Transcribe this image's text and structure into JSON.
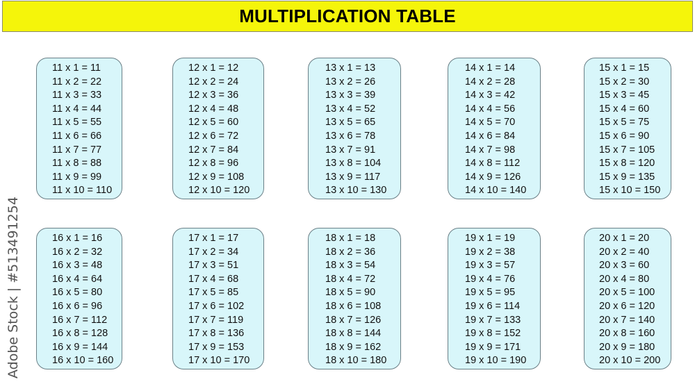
{
  "title": "MULTIPLICATION TABLE",
  "watermark": "Adobe Stock | #513491254",
  "colors": {
    "banner": "#f5f50a",
    "card": "#d8f6fa"
  },
  "tables": [
    {
      "base": 11,
      "rows": [
        "11 x 1 = 11",
        "11 x 2 = 22",
        "11 x 3 = 33",
        "11 x 4 = 44",
        "11 x 5 = 55",
        "11 x 6 = 66",
        "11 x 7 = 77",
        "11 x 8 = 88",
        "11 x 9 = 99",
        "11 x 10 = 110"
      ]
    },
    {
      "base": 12,
      "rows": [
        "12 x 1 = 12",
        "12 x 2 = 24",
        "12 x 3 = 36",
        "12 x 4 = 48",
        "12 x 5 = 60",
        "12 x 6 = 72",
        "12 x 7 = 84",
        "12 x 8 = 96",
        "12 x 9 = 108",
        "12 x 10 = 120"
      ]
    },
    {
      "base": 13,
      "rows": [
        "13 x 1 = 13",
        "13 x 2 = 26",
        "13 x 3 = 39",
        "13 x 4 = 52",
        "13 x 5 = 65",
        "13 x 6 = 78",
        "13 x 7 = 91",
        "13 x 8 = 104",
        "13 x 9 = 117",
        "13 x 10 = 130"
      ]
    },
    {
      "base": 14,
      "rows": [
        "14 x 1 = 14",
        "14 x 2 = 28",
        "14 x 3 = 42",
        "14 x 4 = 56",
        "14 x 5 = 70",
        "14 x 6 = 84",
        "14 x 7 = 98",
        "14 x 8 = 112",
        "14 x 9 = 126",
        "14 x 10 = 140"
      ]
    },
    {
      "base": 15,
      "rows": [
        "15 x 1 = 15",
        "15 x 2 = 30",
        "15 x 3 = 45",
        "15 x 4 = 60",
        "15 x 5 = 75",
        "15 x 6 = 90",
        "15 x 7 = 105",
        "15 x 8 = 120",
        "15 x 9 = 135",
        "15 x 10 = 150"
      ]
    },
    {
      "base": 16,
      "rows": [
        "16 x 1 = 16",
        "16 x 2 = 32",
        "16 x 3 = 48",
        "16 x 4 = 64",
        "16 x 5 = 80",
        "16 x 6 = 96",
        "16 x 7 = 112",
        "16 x 8 = 128",
        "16 x 9 = 144",
        "16 x 10 = 160"
      ]
    },
    {
      "base": 17,
      "rows": [
        "17 x 1 = 17",
        "17 x 2 = 34",
        "17 x 3 = 51",
        "17 x 4 = 68",
        "17 x 5 = 85",
        "17 x 6 = 102",
        "17 x 7 = 119",
        "17 x 8 = 136",
        "17 x 9 = 153",
        "17 x 10 = 170"
      ]
    },
    {
      "base": 18,
      "rows": [
        "18 x 1 = 18",
        "18 x 2 = 36",
        "18 x 3 = 54",
        "18 x 4 = 72",
        "18 x 5 = 90",
        "18 x 6 = 108",
        "18 x 7 = 126",
        "18 x 8 = 144",
        "18 x 9 = 162",
        "18 x 10 = 180"
      ]
    },
    {
      "base": 19,
      "rows": [
        "19 x 1 = 19",
        "19 x 2 = 38",
        "19 x 3 = 57",
        "19 x 4 = 76",
        "19 x 5 = 95",
        "19 x 6 = 114",
        "19 x 7 = 133",
        "19 x 8 = 152",
        "19 x 9 = 171",
        "19 x 10 = 190"
      ]
    },
    {
      "base": 20,
      "rows": [
        "20 x 1 = 20",
        "20 x 2 = 40",
        "20 x 3 = 60",
        "20 x 4 = 80",
        "20 x 5 = 100",
        "20 x 6 = 120",
        "20 x 7 = 140",
        "20 x 8 = 160",
        "20 x 9 = 180",
        "20 x 10 = 200"
      ]
    }
  ]
}
